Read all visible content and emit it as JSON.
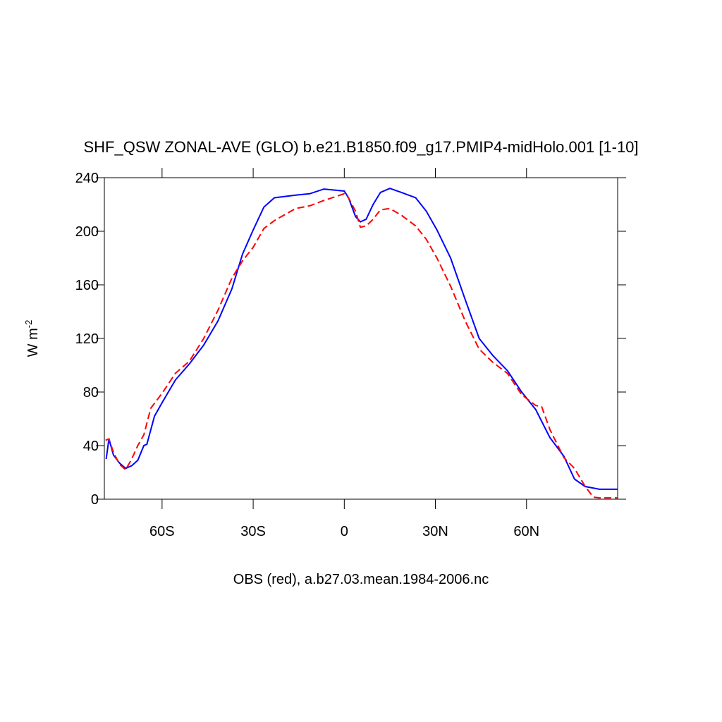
{
  "chart_data": {
    "type": "line",
    "title": "SHF_QSW ZONAL-AVE (GLO) b.e21.B1850.f09_g17.PMIP4-midHolo.001 [1-10]",
    "x_label": "OBS (red), a.b27.03.mean.1984-2006.nc",
    "y_label": "W m",
    "y_label_superscript": "-2",
    "xlim": [
      -79,
      90
    ],
    "ylim": [
      0,
      240
    ],
    "xticks": [
      {
        "value": -60,
        "label": "60S"
      },
      {
        "value": -30,
        "label": "30S"
      },
      0,
      {
        "value": 30,
        "label": "30N"
      },
      {
        "value": 60,
        "label": "60N"
      }
    ],
    "yticks": [
      0,
      40,
      80,
      120,
      160,
      200,
      240
    ],
    "series": [
      {
        "color": "#0000ff",
        "style": "solid",
        "x": [
          -78.4,
          -77.5,
          -76,
          -74,
          -72,
          -70,
          -68,
          -66,
          -65,
          -62.5,
          -60,
          -55.6,
          -51,
          -46.3,
          -41.6,
          -37,
          -33.5,
          -30,
          -26.5,
          -23,
          -16,
          -11.4,
          -6.7,
          0,
          1.4,
          3.7,
          5.3,
          7.2,
          9.5,
          11.9,
          15,
          18.8,
          23.5,
          27,
          30.5,
          35,
          39.8,
          44.4,
          49,
          53.7,
          58.4,
          63,
          67.7,
          72.3,
          75.8,
          79.3,
          84,
          90
        ],
        "values": [
          30,
          45,
          33,
          27,
          23,
          25,
          29,
          40,
          41,
          62,
          72,
          89,
          101,
          115,
          133,
          157,
          183,
          201,
          218,
          225,
          227,
          228,
          231.5,
          230,
          225,
          211,
          207,
          209,
          220,
          229,
          232,
          229,
          225,
          215,
          201,
          180,
          149,
          120,
          107,
          96,
          80,
          67,
          46,
          32,
          15,
          9.5,
          7.4,
          7.4
        ]
      },
      {
        "color": "#ff0000",
        "style": "dashed",
        "x": [
          -78.6,
          -77.5,
          -76,
          -74,
          -72,
          -70,
          -68,
          -66,
          -63.7,
          -60,
          -55.6,
          -51,
          -46.3,
          -41.6,
          -37,
          -33.5,
          -30,
          -26.5,
          -23,
          -16,
          -11.4,
          -6.7,
          0,
          1.4,
          3.7,
          5.3,
          7.2,
          9.5,
          11.9,
          15,
          18.8,
          23.5,
          27,
          30.5,
          35,
          39.8,
          44.4,
          49,
          53.7,
          58.4,
          63,
          65,
          67.7,
          72.3,
          75.8,
          79.3,
          82,
          84,
          90
        ],
        "values": [
          44,
          45,
          35,
          26,
          22,
          30,
          40,
          48,
          68,
          79,
          94,
          103,
          120,
          141,
          165,
          178,
          188,
          202,
          208,
          217,
          219,
          223,
          228,
          225,
          215,
          203,
          204,
          209,
          216,
          217,
          212,
          204,
          194,
          180,
          159,
          133,
          112,
          102,
          94,
          78,
          70,
          69,
          52,
          31,
          23,
          9.5,
          1.5,
          1,
          1
        ]
      }
    ]
  }
}
